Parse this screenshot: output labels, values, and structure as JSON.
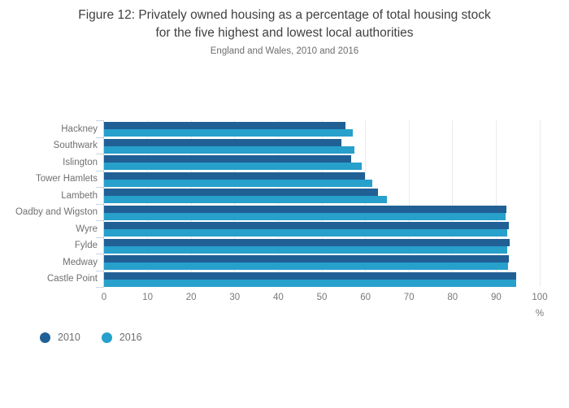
{
  "title": {
    "line1": "Figure 12: Privately owned housing as a percentage of total housing stock",
    "line2": "for the five highest and lowest local authorities"
  },
  "subtitle": "England and Wales, 2010 and 2016",
  "chart_data": {
    "type": "bar",
    "orientation": "horizontal",
    "title": "Figure 12: Privately owned housing as a percentage of total housing stock for the five highest and lowest local authorities",
    "subtitle": "England and Wales, 2010 and 2016",
    "categories": [
      "Hackney",
      "Southwark",
      "Islington",
      "Tower Hamlets",
      "Lambeth",
      "Oadby and Wigston",
      "Wyre",
      "Fylde",
      "Medway",
      "Castle Point"
    ],
    "series": [
      {
        "name": "2010",
        "color": "#206095",
        "values": [
          55.4,
          54.5,
          56.7,
          59.9,
          62.9,
          92.4,
          92.9,
          93.1,
          93.0,
          94.6
        ]
      },
      {
        "name": "2016",
        "color": "#27a0cc",
        "values": [
          57.1,
          57.4,
          59.2,
          61.6,
          65.0,
          92.1,
          92.5,
          92.6,
          92.7,
          94.6
        ]
      }
    ],
    "xlabel": "%",
    "x_ticks": [
      0,
      10,
      20,
      30,
      40,
      50,
      60,
      70,
      80,
      90,
      100
    ],
    "xlim": [
      0,
      100
    ],
    "grid": "vertical-only",
    "legend_position": "bottom-left"
  },
  "colors": {
    "series_2010": "#206095",
    "series_2016": "#27a0cc",
    "gridline": "#ebebeb",
    "axis": "#c6d4e2",
    "text_muted": "#6e6e72"
  }
}
